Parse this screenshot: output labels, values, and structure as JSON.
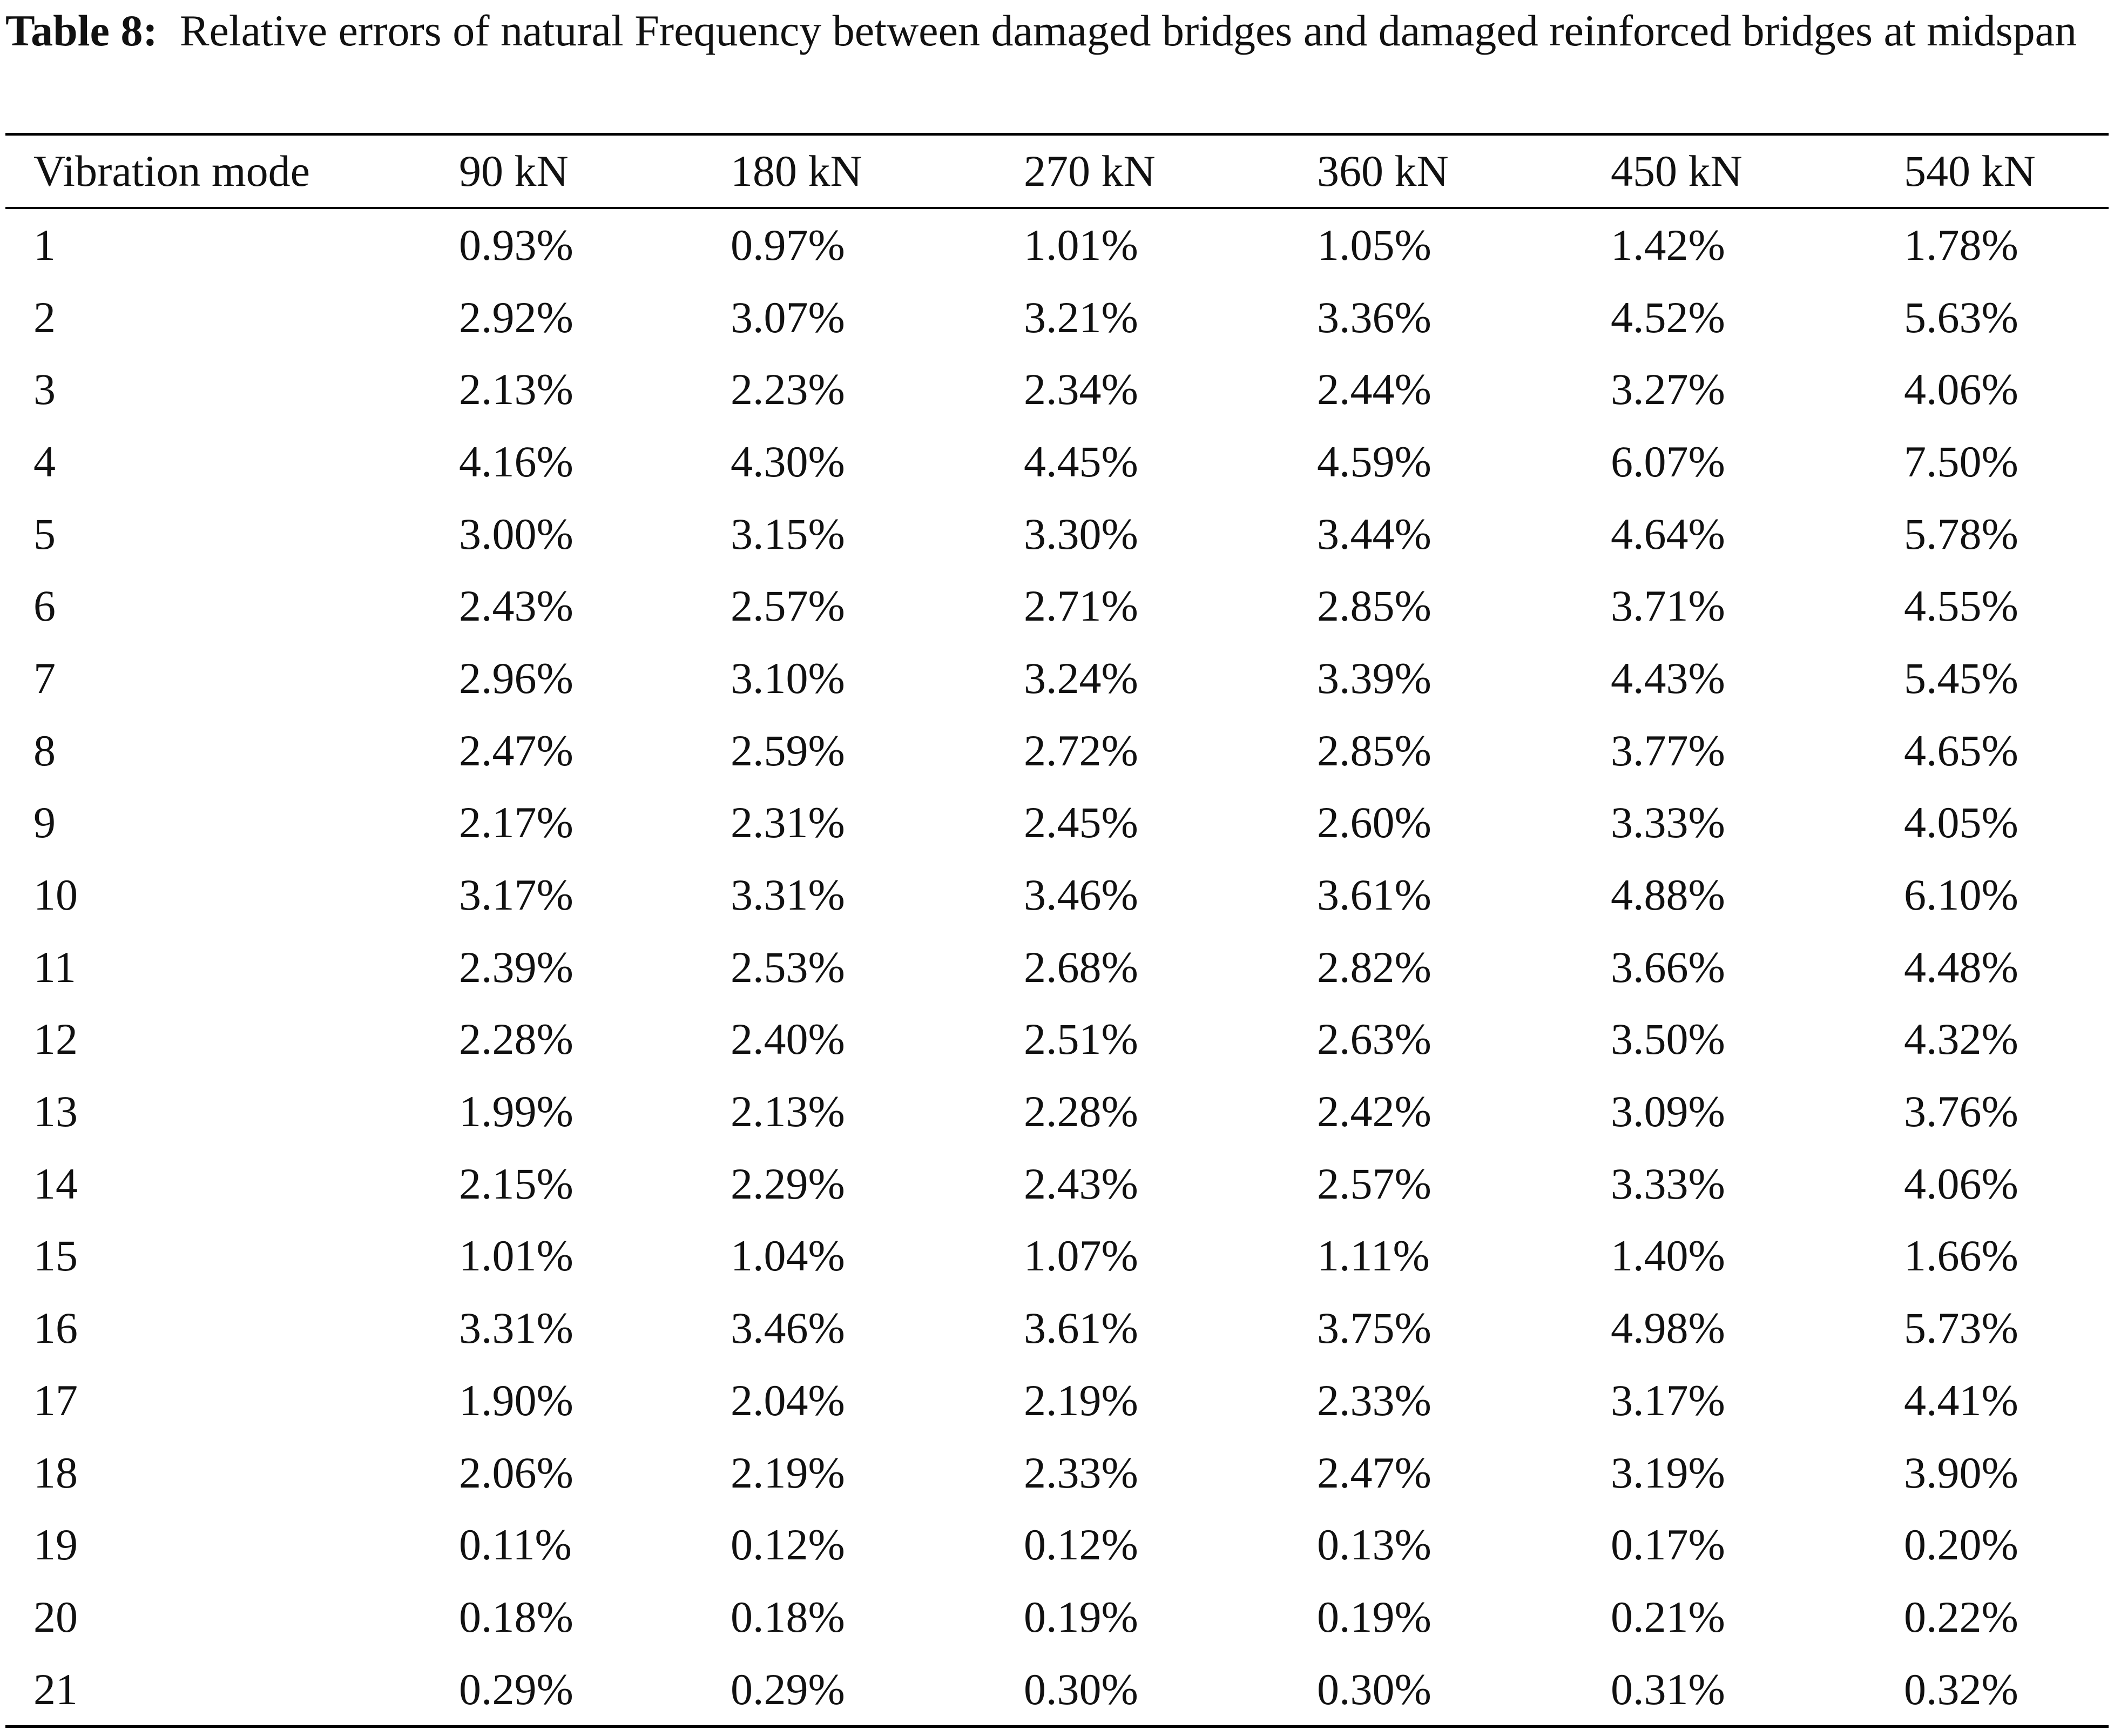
{
  "caption": {
    "label": "Table 8:",
    "text": "Relative errors of natural Frequency between damaged bridges and damaged reinforced bridges at midspan"
  },
  "table": {
    "headers": [
      "Vibration mode",
      "90 kN",
      "180 kN",
      "270 kN",
      "360 kN",
      "450 kN",
      "540 kN"
    ],
    "rows": [
      [
        "1",
        "0.93%",
        "0.97%",
        "1.01%",
        "1.05%",
        "1.42%",
        "1.78%"
      ],
      [
        "2",
        "2.92%",
        "3.07%",
        "3.21%",
        "3.36%",
        "4.52%",
        "5.63%"
      ],
      [
        "3",
        "2.13%",
        "2.23%",
        "2.34%",
        "2.44%",
        "3.27%",
        "4.06%"
      ],
      [
        "4",
        "4.16%",
        "4.30%",
        "4.45%",
        "4.59%",
        "6.07%",
        "7.50%"
      ],
      [
        "5",
        "3.00%",
        "3.15%",
        "3.30%",
        "3.44%",
        "4.64%",
        "5.78%"
      ],
      [
        "6",
        "2.43%",
        "2.57%",
        "2.71%",
        "2.85%",
        "3.71%",
        "4.55%"
      ],
      [
        "7",
        "2.96%",
        "3.10%",
        "3.24%",
        "3.39%",
        "4.43%",
        "5.45%"
      ],
      [
        "8",
        "2.47%",
        "2.59%",
        "2.72%",
        "2.85%",
        "3.77%",
        "4.65%"
      ],
      [
        "9",
        "2.17%",
        "2.31%",
        "2.45%",
        "2.60%",
        "3.33%",
        "4.05%"
      ],
      [
        "10",
        "3.17%",
        "3.31%",
        "3.46%",
        "3.61%",
        "4.88%",
        "6.10%"
      ],
      [
        "11",
        "2.39%",
        "2.53%",
        "2.68%",
        "2.82%",
        "3.66%",
        "4.48%"
      ],
      [
        "12",
        "2.28%",
        "2.40%",
        "2.51%",
        "2.63%",
        "3.50%",
        "4.32%"
      ],
      [
        "13",
        "1.99%",
        "2.13%",
        "2.28%",
        "2.42%",
        "3.09%",
        "3.76%"
      ],
      [
        "14",
        "2.15%",
        "2.29%",
        "2.43%",
        "2.57%",
        "3.33%",
        "4.06%"
      ],
      [
        "15",
        "1.01%",
        "1.04%",
        "1.07%",
        "1.11%",
        "1.40%",
        "1.66%"
      ],
      [
        "16",
        "3.31%",
        "3.46%",
        "3.61%",
        "3.75%",
        "4.98%",
        "5.73%"
      ],
      [
        "17",
        "1.90%",
        "2.04%",
        "2.19%",
        "2.33%",
        "3.17%",
        "4.41%"
      ],
      [
        "18",
        "2.06%",
        "2.19%",
        "2.33%",
        "2.47%",
        "3.19%",
        "3.90%"
      ],
      [
        "19",
        "0.11%",
        "0.12%",
        "0.12%",
        "0.13%",
        "0.17%",
        "0.20%"
      ],
      [
        "20",
        "0.18%",
        "0.18%",
        "0.19%",
        "0.19%",
        "0.21%",
        "0.22%"
      ],
      [
        "21",
        "0.29%",
        "0.29%",
        "0.30%",
        "0.30%",
        "0.31%",
        "0.32%"
      ]
    ]
  }
}
